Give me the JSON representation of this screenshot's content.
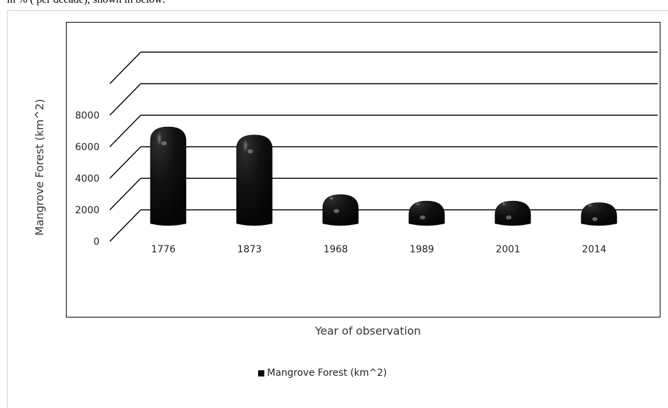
{
  "page": {
    "top_text": "in % ( per decade), shown in below:"
  },
  "chart_data": {
    "type": "bar",
    "categories": [
      "1776",
      "1873",
      "1968",
      "1989",
      "2001",
      "2014"
    ],
    "series": [
      {
        "name": "Mangrove Forest (km^2)",
        "values": [
          6000,
          5500,
          1800,
          1400,
          1400,
          1300
        ]
      }
    ],
    "xlabel": "Year of observation",
    "ylabel": "Mangrove Forest (km^2)",
    "ylim": [
      0,
      8000
    ],
    "yticks": [
      "0",
      "2000",
      "4000",
      "6000",
      "8000"
    ],
    "bar_style": "3d-cylinder",
    "colors": {
      "bar": "#111111",
      "grid": "#000000"
    },
    "grid": true,
    "legend_position": "bottom"
  }
}
